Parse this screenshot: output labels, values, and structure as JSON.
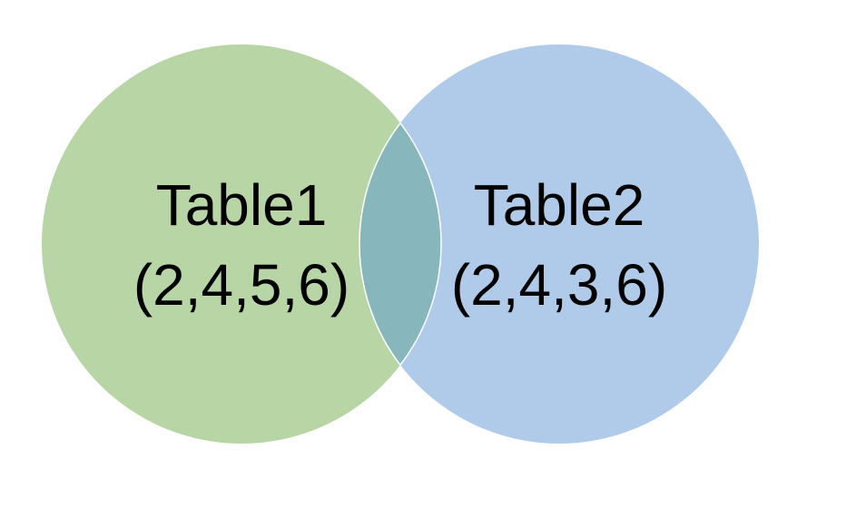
{
  "diagram": {
    "type": "venn",
    "sets": [
      {
        "name": "Table1",
        "values": "(2,4,5,6)",
        "color": "#b8d5a6"
      },
      {
        "name": "Table2",
        "values": "(2,4,3,6)",
        "color": "#afcbe9"
      }
    ],
    "intersection": {
      "color": "#87b6bc"
    },
    "outline_color": "#ffffff"
  }
}
